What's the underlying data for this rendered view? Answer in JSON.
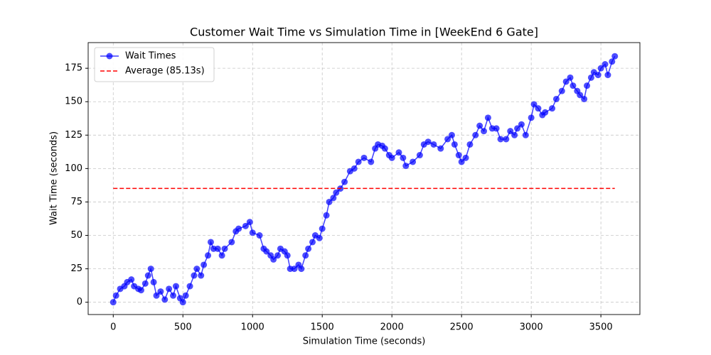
{
  "chart_data": {
    "type": "line",
    "title": "Customer Wait Time vs Simulation Time in [WeekEnd 6 Gate]",
    "x_label": "Simulation Time (seconds)",
    "y_label": "Wait Time (seconds)",
    "xlim": [
      -180,
      3780
    ],
    "ylim": [
      -9.2,
      194.2
    ],
    "xticks": [
      0,
      500,
      1000,
      1500,
      2000,
      2500,
      3000,
      3500
    ],
    "yticks": [
      0,
      25,
      50,
      75,
      100,
      125,
      150,
      175
    ],
    "grid": true,
    "legend": "upper left",
    "series": [
      {
        "name": "Wait Times",
        "color": "#0000ff",
        "x": [
          0,
          20,
          50,
          80,
          100,
          130,
          150,
          180,
          200,
          230,
          250,
          270,
          290,
          310,
          340,
          370,
          400,
          430,
          450,
          480,
          500,
          520,
          550,
          580,
          600,
          630,
          650,
          680,
          700,
          720,
          750,
          780,
          800,
          850,
          880,
          900,
          950,
          980,
          1000,
          1050,
          1080,
          1100,
          1130,
          1150,
          1180,
          1200,
          1230,
          1250,
          1270,
          1300,
          1330,
          1350,
          1380,
          1400,
          1430,
          1450,
          1480,
          1500,
          1530,
          1550,
          1580,
          1600,
          1630,
          1660,
          1700,
          1730,
          1760,
          1800,
          1850,
          1880,
          1900,
          1930,
          1950,
          1980,
          2000,
          2050,
          2080,
          2100,
          2150,
          2200,
          2230,
          2260,
          2300,
          2350,
          2400,
          2430,
          2450,
          2480,
          2500,
          2530,
          2560,
          2600,
          2630,
          2660,
          2690,
          2720,
          2750,
          2780,
          2820,
          2850,
          2880,
          2900,
          2930,
          2960,
          3000,
          3020,
          3050,
          3080,
          3100,
          3150,
          3180,
          3220,
          3250,
          3280,
          3300,
          3330,
          3350,
          3380,
          3400,
          3430,
          3450,
          3480,
          3500,
          3530,
          3550,
          3580,
          3600
        ],
        "values": [
          0,
          5,
          10,
          12,
          15,
          17,
          12,
          10,
          9,
          14,
          20,
          25,
          15,
          5,
          8,
          2,
          10,
          5,
          12,
          3,
          0,
          5,
          12,
          20,
          25,
          20,
          28,
          35,
          45,
          40,
          40,
          35,
          40,
          45,
          53,
          55,
          57,
          60,
          52,
          50,
          40,
          38,
          35,
          32,
          35,
          40,
          38,
          35,
          25,
          25,
          28,
          25,
          35,
          40,
          45,
          50,
          48,
          55,
          65,
          75,
          78,
          82,
          85,
          90,
          98,
          100,
          105,
          108,
          105,
          115,
          118,
          117,
          115,
          110,
          108,
          112,
          108,
          102,
          105,
          110,
          118,
          120,
          118,
          115,
          122,
          125,
          118,
          110,
          105,
          108,
          118,
          125,
          132,
          128,
          138,
          130,
          130,
          122,
          122,
          128,
          125,
          130,
          133,
          125,
          138,
          148,
          145,
          140,
          142,
          145,
          152,
          158,
          165,
          168,
          162,
          158,
          155,
          152,
          162,
          168,
          172,
          170,
          175,
          178,
          170,
          180,
          184
        ]
      }
    ],
    "average_line": {
      "name": "Average (85.13s)",
      "value": 85.13,
      "color": "#ff0000",
      "x": [
        0,
        3600
      ]
    }
  }
}
